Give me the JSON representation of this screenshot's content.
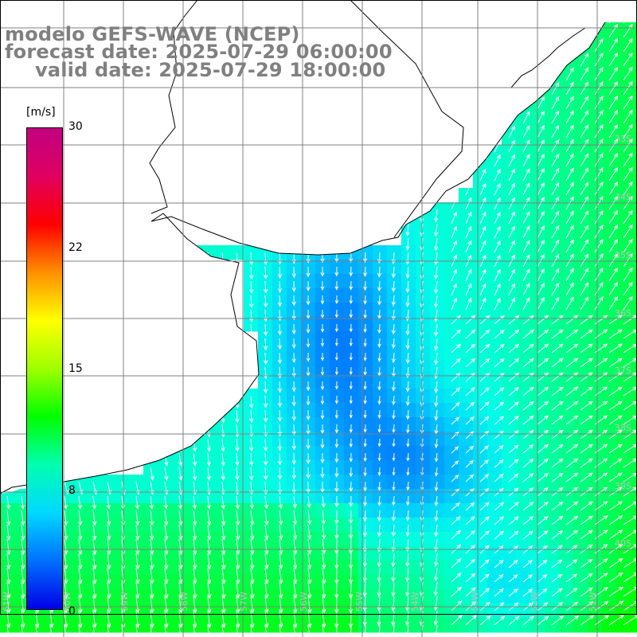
{
  "header": {
    "model": "modelo GEFS-WAVE (NCEP)",
    "forecast": "forecast date: 2025-07-29 06:00:00",
    "valid": "valid date: 2025-07-29 18:00:00"
  },
  "colorbar": {
    "units": "[m/s]",
    "ticks": [
      "30",
      "22",
      "15",
      "8",
      "0"
    ],
    "tick_values": [
      30,
      22,
      15,
      8,
      0
    ],
    "colors": [
      "#0000e6",
      "#0070ff",
      "#00d8ff",
      "#00ffb0",
      "#00ff00",
      "#a0ff00",
      "#ffff00",
      "#ff9000",
      "#ff0000",
      "#e00060",
      "#c00080"
    ]
  },
  "map": {
    "lon_labels": [
      "61W",
      "60W",
      "59W",
      "58W",
      "57W",
      "56W",
      "55W",
      "54W",
      "53W",
      "52W",
      "51W"
    ],
    "lat_labels": [
      "33S",
      "34S",
      "35S",
      "36S",
      "37S",
      "38S",
      "39S",
      "40S"
    ]
  }
}
